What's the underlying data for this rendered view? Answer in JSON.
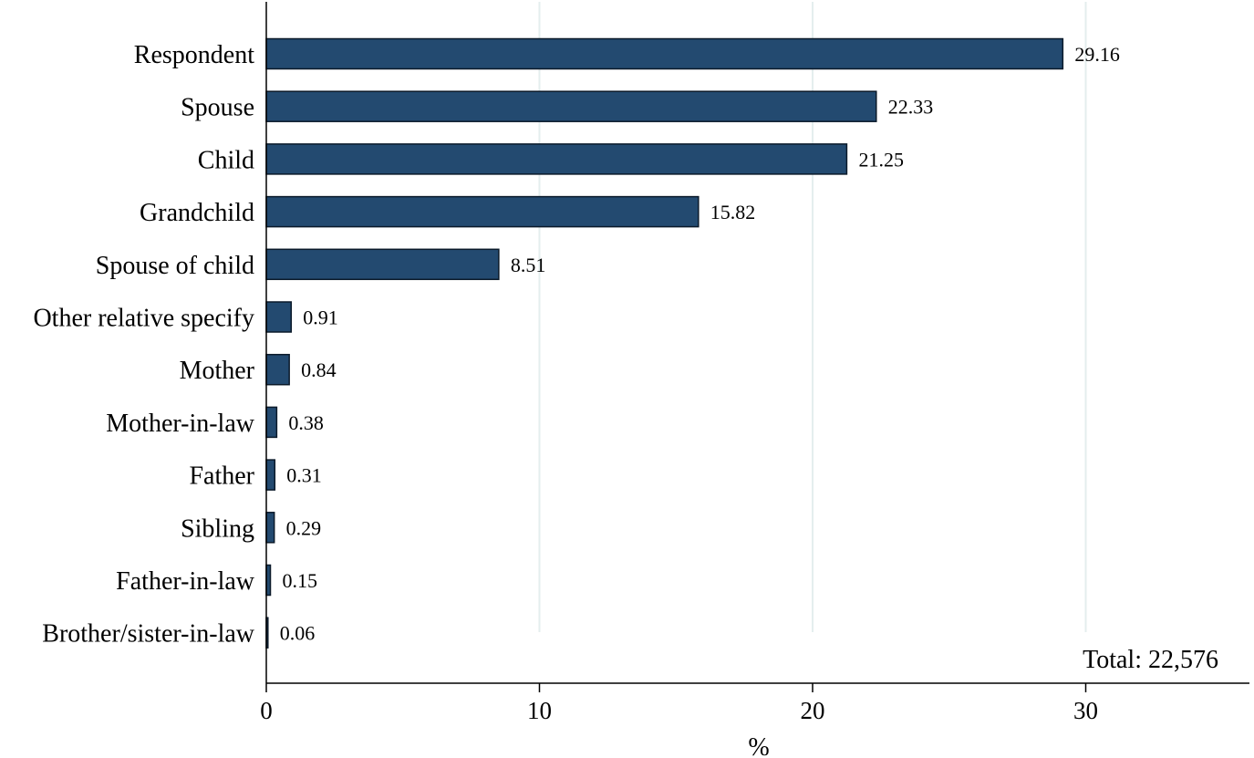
{
  "chart_data": {
    "type": "bar",
    "orientation": "horizontal",
    "categories": [
      "Respondent",
      "Spouse",
      "Child",
      "Grandchild",
      "Spouse of child",
      "Other relative specify",
      "Mother",
      "Mother-in-law",
      "Father",
      "Sibling",
      "Father-in-law",
      "Brother/sister-in-law"
    ],
    "values": [
      29.16,
      22.33,
      21.25,
      15.82,
      8.51,
      0.91,
      0.84,
      0.38,
      0.31,
      0.29,
      0.15,
      0.06
    ],
    "value_labels": [
      "29.16",
      "22.33",
      "21.25",
      "15.82",
      "8.51",
      "0.91",
      "0.84",
      "0.38",
      "0.31",
      "0.29",
      "0.15",
      "0.06"
    ],
    "xlabel": "%",
    "xlim": [
      0,
      36
    ],
    "xticks": [
      0,
      10,
      20,
      30
    ],
    "xtick_labels": [
      "0",
      "10",
      "20",
      "30"
    ],
    "grid": "vertical",
    "annotation": "Total: 22,576",
    "colors": {
      "bar": "#234a70",
      "bar_edge": "#0b1a2a",
      "grid": "#e4eeee"
    }
  }
}
